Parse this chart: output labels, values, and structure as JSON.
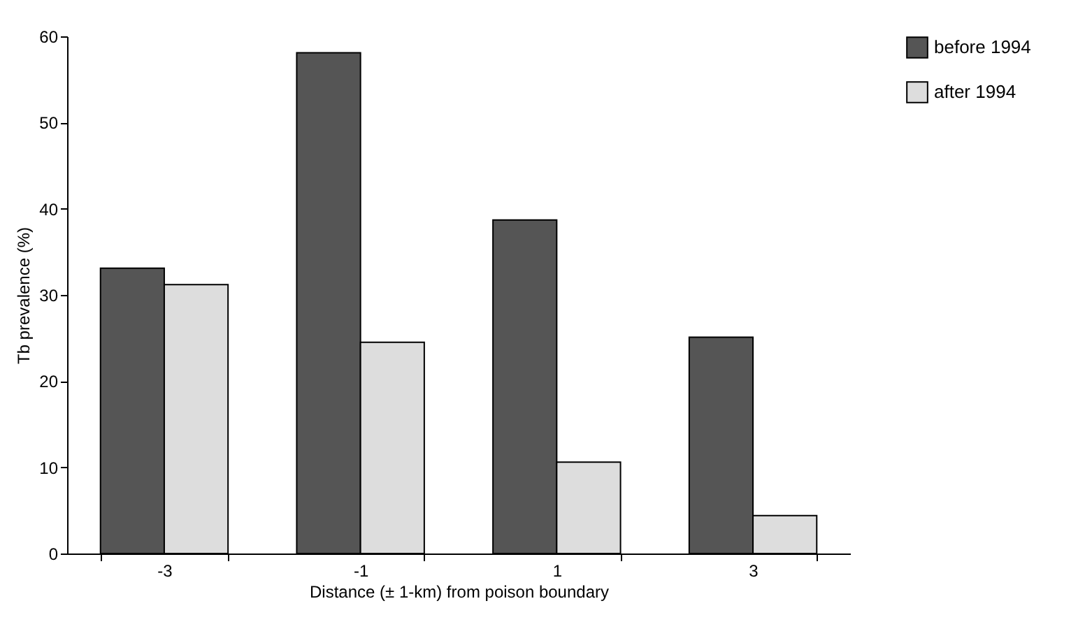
{
  "chart_data": {
    "type": "bar",
    "xlabel": "Distance (± 1-km) from poison boundary",
    "ylabel": "Tb prevalence (%)",
    "categories": [
      "-3",
      "-1",
      "1",
      "3"
    ],
    "series": [
      {
        "name": "before 1994",
        "color": "#555555",
        "values": [
          33.1,
          58.1,
          38.7,
          25.1
        ]
      },
      {
        "name": "after 1994",
        "color": "#dddddd",
        "values": [
          31.2,
          24.5,
          10.6,
          4.4
        ]
      }
    ],
    "ylim": [
      0,
      60
    ],
    "yticks": [
      0,
      10,
      20,
      30,
      40,
      50,
      60
    ],
    "grid": false,
    "legend": "top right"
  }
}
